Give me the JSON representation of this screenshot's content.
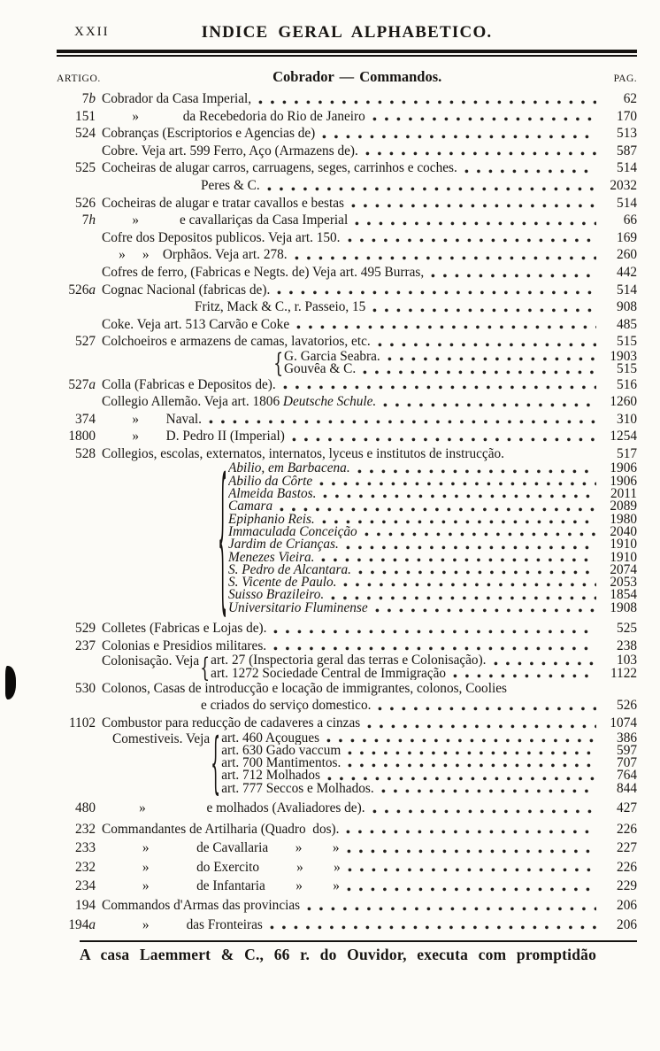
{
  "masthead": {
    "folio": "XXII",
    "running_title": "INDICE GERAL ALPHABETICO."
  },
  "table_header": {
    "artigo": "ARTIGO.",
    "section": "Cobrador — Commandos.",
    "pag": "PAG."
  },
  "footer": {
    "text": "A casa Laemmert & C., 66 r. do Ouvidor, executa com promptidão"
  },
  "entries": [
    {
      "art": "7b",
      "text": "Cobrador da Casa Imperial,",
      "page": "62"
    },
    {
      "art": "151",
      "text": "         »             da Recebedoria do Rio de Janeiro",
      "page": "170"
    },
    {
      "art": "524",
      "text": "Cobranças (Escriptorios e Agencias de)",
      "page": "513"
    },
    {
      "art": "",
      "text": "Cobre. Veja art. 599 Ferro, Aço (Armazens de).",
      "page": "587"
    },
    {
      "art": "525",
      "text": "Cocheiras de alugar carros, carruagens, seges, carrinhos e coches.",
      "page": "514"
    },
    {
      "art": "",
      "indent": 112,
      "text": "Peres & C.",
      "page": "2032"
    },
    {
      "art": "526",
      "text": "Cocheiras de alugar e tratar cavallos e bestas",
      "page": "514"
    },
    {
      "art": "7h",
      "text": "         »            e cavallariças da Casa Imperial",
      "page": "66"
    },
    {
      "art": "",
      "text": "Cofre dos Depositos publicos. Veja art. 150.",
      "page": "169"
    },
    {
      "art": "",
      "text": "     »     »    Orphãos. Veja art. 278.",
      "page": "260"
    },
    {
      "art": "",
      "text": "Cofres de ferro, (Fabricas e Negts. de) Veja art. 495 Burras,",
      "page": "442"
    },
    {
      "art": "526a",
      "text": "Cognac Nacional (fabricas de).",
      "page": "514"
    },
    {
      "art": "",
      "indent": 105,
      "text": "Fritz, Mack & C., r. Passeio, 15",
      "page": "908"
    },
    {
      "art": "",
      "text": "Coke. Veja art. 513 Carvão e Coke",
      "page": "485"
    },
    {
      "art": "527",
      "text": "Colchoeiros e armazens de camas, lavatorios, etc.",
      "page": "515"
    },
    {
      "indent": 193,
      "items": [
        {
          "text": "G. Garcia Seabra.",
          "page": "1903"
        },
        {
          "text": "Gouvêa & C.",
          "page": "515"
        }
      ]
    },
    {
      "art": "527a",
      "text": "Colla (Fabricas e Depositos de).",
      "page": "516"
    },
    {
      "art": "",
      "parts": [
        {
          "t": "Collegio Allemão. Veja art. 1806 "
        },
        {
          "t": "Deutsche Schule.",
          "i": true
        }
      ],
      "page": "1260"
    },
    {
      "art": "374",
      "text": "         »        Naval.",
      "page": "310"
    },
    {
      "art": "1800",
      "text": "         »        D. Pedro II (Imperial)",
      "page": "1254"
    },
    {
      "art": "528",
      "text": "Collegios, escolas, externatos, internatos, lyceus e institutos de instrucção.",
      "page": "517",
      "dots": false
    },
    {
      "indent": 130,
      "italic": true,
      "items": [
        {
          "text": "Abilio, em Barbacena.",
          "page": "1906"
        },
        {
          "text": "Abilio da Côrte",
          "page": "1906"
        },
        {
          "text": "Almeida Bastos.",
          "page": "2011"
        },
        {
          "text": "Camara",
          "page": "2089"
        },
        {
          "text": "Epiphanio Reis.",
          "page": "1980"
        },
        {
          "text": "Immaculada Conceição",
          "page": "2040"
        },
        {
          "text": "Jardim de Crianças.",
          "page": "1910"
        },
        {
          "text": "Menezes Vieira.",
          "page": "1910"
        },
        {
          "text": "S. Pedro de Alcantara.",
          "page": "2074"
        },
        {
          "text": "S. Vicente de Paulo.",
          "page": "2053"
        },
        {
          "text": "Suisso Brazileiro.",
          "page": "1854"
        },
        {
          "text": "Universitario Fluminense",
          "page": "1908"
        }
      ]
    },
    {
      "art": "529",
      "gap": 6,
      "text": "Colletes (Fabricas e Lojas de).",
      "page": "525"
    },
    {
      "art": "237",
      "text": "Colonias e Presidios militares.",
      "page": "238"
    },
    {
      "label": "Colonisação. Veja",
      "items": [
        {
          "text": "art. 27 (Inspectoria geral das terras e Colonisação).",
          "page": "103"
        },
        {
          "text": "art. 1272 Sociedade Central de Immigração",
          "page": "1122"
        }
      ]
    },
    {
      "art": "530",
      "text": "Colonos, Casas de introducção e locação de immigrantes, colonos, Coolies",
      "page": "",
      "dots": false
    },
    {
      "art": "",
      "indent": 112,
      "text": "e criados do serviço domestico.",
      "page": "526"
    },
    {
      "art": "1102",
      "text": "Combustor para reducção de cadaveres a cinzas",
      "page": "1074"
    },
    {
      "label": "Comestiveis. Veja",
      "label_indent": 12,
      "items": [
        {
          "text": "art. 460 Açougues",
          "page": "386"
        },
        {
          "text": "art. 630 Gado vaccum",
          "page": "597"
        },
        {
          "text": "art. 700 Mantimentos.",
          "page": "707"
        },
        {
          "text": "art. 712 Molhados",
          "page": "764"
        },
        {
          "text": "art. 777 Seccos e Molhados.",
          "page": "844"
        }
      ]
    },
    {
      "art": "480",
      "gap": 5,
      "text": "           »                  e molhados (Avaliadores de).",
      "page": "427"
    },
    {
      "art": "232",
      "gap": 4,
      "text": "Commandantes de Artilharia (Quadro  dos).",
      "page": "226"
    },
    {
      "art": "233",
      "gap": 2,
      "text": "            »              de Cavallaria        »         »",
      "page": "227"
    },
    {
      "art": "232",
      "gap": 2,
      "text": "            »              do Exercito           »         »",
      "page": "226"
    },
    {
      "art": "234",
      "gap": 2,
      "text": "            »              de Infantaria         »         »",
      "page": "229"
    },
    {
      "art": "194",
      "gap": 2,
      "text": "Commandos d'Armas das provincias",
      "page": "206"
    },
    {
      "art": "194a",
      "gap": 2,
      "text": "            »           das Fronteiras",
      "page": "206"
    }
  ]
}
